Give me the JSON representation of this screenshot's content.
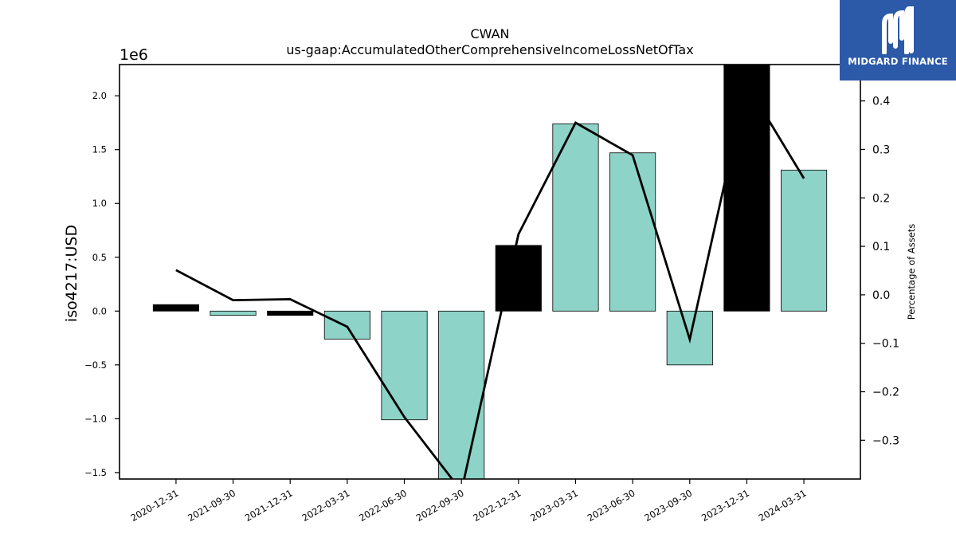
{
  "logo": {
    "text": "MIDGARD FINANCE",
    "icon": "midgard-logo-icon",
    "background": "#2c5aa8"
  },
  "chart_data": {
    "type": "bar",
    "title": "CWAN",
    "subtitle": "us-gaap:AccumulatedOtherComprehensiveIncomeLossNetOfTax",
    "ylabel": "iso4217:USD",
    "y_offset_label": "1e6",
    "y2label": "Percentage of Assets",
    "categories": [
      "2020-12-31",
      "2021-09-30",
      "2021-12-31",
      "2022-03-31",
      "2022-06-30",
      "2022-09-30",
      "2022-12-31",
      "2023-03-31",
      "2023-06-30",
      "2023-09-30",
      "2023-12-31",
      "2024-03-31"
    ],
    "bars": {
      "values": [
        60000,
        -40000,
        -40000,
        -260000,
        -1010000,
        -1560000,
        610000,
        1740000,
        1470000,
        -500000,
        2290000,
        1310000
      ],
      "colors": [
        "#000000",
        "#8dd3c7",
        "#000000",
        "#8dd3c7",
        "#8dd3c7",
        "#8dd3c7",
        "#000000",
        "#8dd3c7",
        "#8dd3c7",
        "#8dd3c7",
        "#000000",
        "#8dd3c7"
      ]
    },
    "line": {
      "values": [
        0.051,
        -0.011,
        -0.009,
        -0.066,
        -0.252,
        -0.405,
        0.125,
        0.355,
        0.288,
        -0.092,
        0.435,
        0.24
      ],
      "color": "#000000"
    },
    "ylim": [
      -1560000,
      2290000
    ],
    "y2lim": [
      -0.38,
      0.475
    ],
    "yticks": [
      -1.5,
      -1.0,
      -0.5,
      0.0,
      0.5,
      1.0,
      1.5,
      2.0
    ],
    "y2ticks": [
      -0.3,
      -0.2,
      -0.1,
      0.0,
      0.1,
      0.2,
      0.3,
      0.4
    ],
    "ytick_labels": [
      "−1.5",
      "−1.0",
      "−0.5",
      "0.0",
      "0.5",
      "1.0",
      "1.5",
      "2.0"
    ],
    "y2tick_labels": [
      "−0.3",
      "−0.2",
      "−0.1",
      "0.0",
      "0.1",
      "0.2",
      "0.3",
      "0.4"
    ],
    "grid": false
  }
}
